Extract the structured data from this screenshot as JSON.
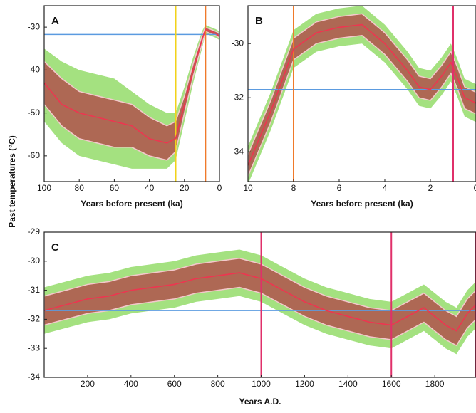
{
  "ylabel": "Past temperatures (°C)",
  "chart_data": [
    {
      "type": "line",
      "letter": "A",
      "xlabel": "Years before present (ka)",
      "x": [
        100,
        90,
        80,
        70,
        60,
        50,
        40,
        30,
        25,
        20,
        15,
        10,
        8,
        5,
        2,
        0
      ],
      "xlim": [
        100,
        0
      ],
      "ylim": [
        -66,
        -25
      ],
      "xticks": [
        100,
        80,
        60,
        40,
        20,
        0
      ],
      "yticks": [
        -30,
        -40,
        -50,
        -60
      ],
      "bands": [
        {
          "color": "#94dc6a",
          "upper": [
            -35,
            -38,
            -40,
            -41,
            -42,
            -45,
            -48,
            -50,
            -50,
            -44,
            -37,
            -31,
            -29.5,
            -30,
            -30.5,
            -31
          ],
          "lower": [
            -52,
            -57,
            -60,
            -61,
            -62,
            -63,
            -63,
            -63,
            -61,
            -52,
            -43,
            -35,
            -31.5,
            -32,
            -32.5,
            -33
          ]
        },
        {
          "color": "#b0524c",
          "upper": [
            -38,
            -42,
            -45,
            -46,
            -47,
            -48,
            -51,
            -53,
            -52,
            -46,
            -38.5,
            -32,
            -30,
            -30.5,
            -31,
            -31.5
          ],
          "lower": [
            -48,
            -53,
            -56,
            -57,
            -58,
            -58,
            -60,
            -61,
            -59,
            -50,
            -41.5,
            -34,
            -31,
            -31.5,
            -32,
            -32.5
          ]
        }
      ],
      "series": [
        {
          "color": "#ee3550",
          "values": [
            -43,
            -48,
            -50,
            -51,
            -52,
            -53,
            -56,
            -57,
            -56,
            -48,
            -40,
            -33,
            -30.5,
            -31,
            -31.5,
            -32
          ]
        }
      ],
      "hlines": [
        {
          "value": -31.7,
          "color": "#5b9be0"
        }
      ],
      "vlines": [
        {
          "value": 25,
          "color": "#f2d21a"
        },
        {
          "value": 8,
          "color": "#f07a2a"
        }
      ]
    },
    {
      "type": "line",
      "letter": "B",
      "xlabel": "Years before present (ka)",
      "x": [
        10,
        9,
        8,
        7,
        6,
        5,
        4,
        3,
        2.5,
        2,
        1.5,
        1.1,
        0.8,
        0.5,
        0
      ],
      "xlim": [
        10,
        0
      ],
      "ylim": [
        -35.1,
        -28.6
      ],
      "xticks": [
        10,
        8,
        6,
        4,
        2,
        0
      ],
      "yticks": [
        -30,
        -32,
        -34
      ],
      "bands": [
        {
          "color": "#94dc6a",
          "upper": [
            -33.8,
            -31.8,
            -29.5,
            -28.9,
            -28.7,
            -28.6,
            -29.3,
            -30.3,
            -30.9,
            -31.0,
            -30.5,
            -30.0,
            -30.6,
            -31.3,
            -31.5
          ],
          "lower": [
            -35.2,
            -33.2,
            -30.9,
            -30.3,
            -30.1,
            -30.0,
            -30.7,
            -31.7,
            -32.3,
            -32.4,
            -31.9,
            -31.4,
            -32.0,
            -32.7,
            -32.9
          ]
        },
        {
          "color": "#b0524c",
          "upper": [
            -34.1,
            -32.1,
            -29.8,
            -29.2,
            -29.0,
            -28.9,
            -29.6,
            -30.6,
            -31.2,
            -31.3,
            -30.8,
            -30.3,
            -30.9,
            -31.6,
            -31.8
          ],
          "lower": [
            -34.9,
            -32.9,
            -30.6,
            -30.0,
            -29.8,
            -29.7,
            -30.4,
            -31.4,
            -32.0,
            -32.1,
            -31.6,
            -31.1,
            -31.7,
            -32.4,
            -32.6
          ]
        }
      ],
      "series": [
        {
          "color": "#ee3550",
          "values": [
            -34.5,
            -32.5,
            -30.2,
            -29.6,
            -29.4,
            -29.3,
            -30.0,
            -31.0,
            -31.6,
            -31.7,
            -31.2,
            -30.7,
            -31.3,
            -32.0,
            -32.2
          ]
        }
      ],
      "hlines": [
        {
          "value": -31.7,
          "color": "#5b9be0"
        }
      ],
      "vlines": [
        {
          "value": 8,
          "color": "#f07a2a"
        },
        {
          "value": 1,
          "color": "#e0306a"
        }
      ]
    },
    {
      "type": "line",
      "letter": "C",
      "xlabel": "Years A.D.",
      "x": [
        0,
        100,
        200,
        300,
        400,
        500,
        600,
        700,
        800,
        900,
        1000,
        1100,
        1200,
        1300,
        1400,
        1500,
        1600,
        1700,
        1750,
        1800,
        1850,
        1900,
        1950,
        1990
      ],
      "xlim": [
        0,
        1990
      ],
      "ylim": [
        -34,
        -29
      ],
      "xticks": [
        200,
        400,
        600,
        800,
        1000,
        1200,
        1400,
        1600,
        1800
      ],
      "yticks": [
        -29,
        -30,
        -31,
        -32,
        -33,
        -34
      ],
      "bands": [
        {
          "color": "#94dc6a",
          "upper": [
            -30.9,
            -30.7,
            -30.5,
            -30.4,
            -30.2,
            -30.1,
            -30.0,
            -29.8,
            -29.7,
            -29.6,
            -29.8,
            -30.2,
            -30.6,
            -30.9,
            -31.1,
            -31.3,
            -31.4,
            -31.0,
            -30.8,
            -31.1,
            -31.4,
            -31.6,
            -31.0,
            -30.7
          ],
          "lower": [
            -32.5,
            -32.3,
            -32.1,
            -32.0,
            -31.8,
            -31.7,
            -31.6,
            -31.4,
            -31.3,
            -31.2,
            -31.4,
            -31.8,
            -32.2,
            -32.5,
            -32.7,
            -32.9,
            -33.0,
            -32.6,
            -32.4,
            -32.7,
            -33.0,
            -33.2,
            -32.6,
            -32.3
          ]
        },
        {
          "color": "#b0524c",
          "upper": [
            -31.2,
            -31.0,
            -30.8,
            -30.7,
            -30.5,
            -30.4,
            -30.3,
            -30.1,
            -30.0,
            -29.9,
            -30.1,
            -30.5,
            -30.9,
            -31.2,
            -31.4,
            -31.6,
            -31.7,
            -31.3,
            -31.1,
            -31.4,
            -31.7,
            -31.9,
            -31.3,
            -31.0
          ],
          "lower": [
            -32.2,
            -32.0,
            -31.8,
            -31.7,
            -31.5,
            -31.4,
            -31.3,
            -31.1,
            -31.0,
            -30.9,
            -31.1,
            -31.5,
            -31.9,
            -32.2,
            -32.4,
            -32.6,
            -32.7,
            -32.3,
            -32.1,
            -32.4,
            -32.7,
            -32.9,
            -32.3,
            -32.0
          ]
        }
      ],
      "series": [
        {
          "color": "#ee3550",
          "values": [
            -31.7,
            -31.5,
            -31.3,
            -31.2,
            -31.0,
            -30.9,
            -30.8,
            -30.6,
            -30.5,
            -30.4,
            -30.6,
            -31.0,
            -31.4,
            -31.7,
            -31.9,
            -32.1,
            -32.2,
            -31.8,
            -31.6,
            -31.9,
            -32.2,
            -32.4,
            -31.8,
            -31.5
          ]
        }
      ],
      "hlines": [
        {
          "value": -31.7,
          "color": "#5b9be0"
        }
      ],
      "vlines": [
        {
          "value": 1000,
          "color": "#e0306a"
        },
        {
          "value": 1600,
          "color": "#e0306a"
        },
        {
          "value": 1990,
          "color": "#e0306a"
        }
      ]
    }
  ]
}
